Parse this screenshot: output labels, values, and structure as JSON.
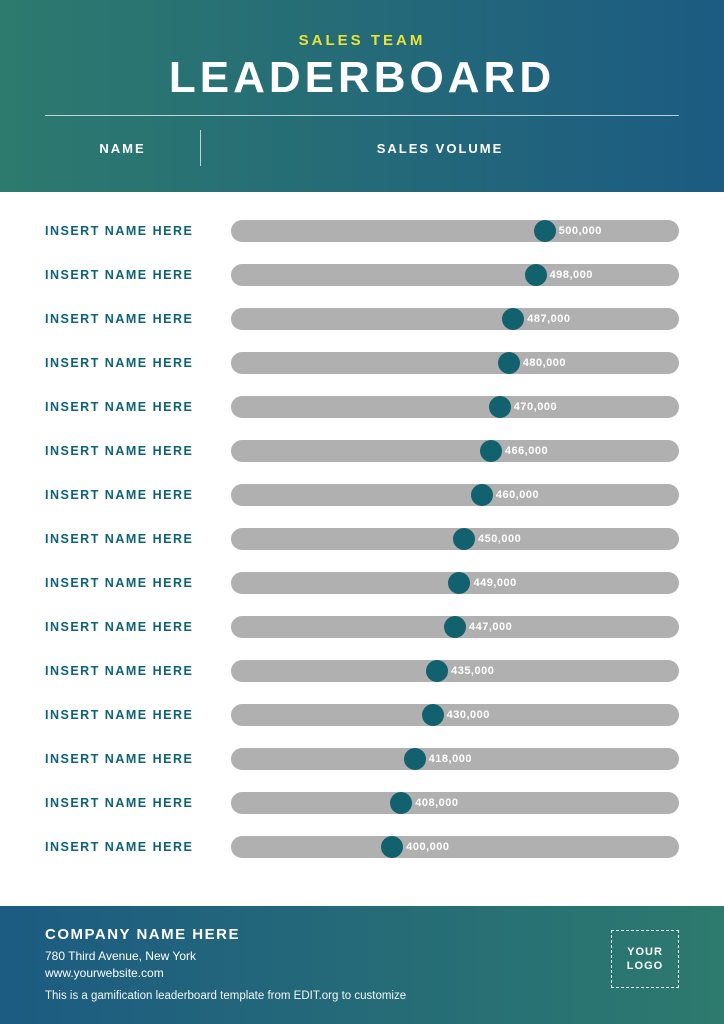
{
  "colors": {
    "header_gradient_start": "#2d7a6e",
    "header_gradient_end": "#1c5b82",
    "footer_gradient_start": "#1c5b82",
    "footer_gradient_end": "#2d7a6e",
    "subtitle_color": "#e8e337",
    "title_color": "#ffffff",
    "name_color": "#0d6278",
    "bar_track": "#b0b0b0",
    "marker_color": "#12616f",
    "value_text": "#ffffff",
    "body_bg": "#ffffff"
  },
  "header": {
    "subtitle": "SALES TEAM",
    "title": "LEADERBOARD",
    "col_name": "NAME",
    "col_volume": "SALES VOLUME"
  },
  "chart": {
    "bar_min_pct": 0,
    "bar_max_pct": 100,
    "rows": [
      {
        "name": "INSERT NAME HERE",
        "value_label": "500,000",
        "marker_pct": 70
      },
      {
        "name": "INSERT NAME HERE",
        "value_label": "498,000",
        "marker_pct": 68
      },
      {
        "name": "INSERT NAME HERE",
        "value_label": "487,000",
        "marker_pct": 63
      },
      {
        "name": "INSERT NAME HERE",
        "value_label": "480,000",
        "marker_pct": 62
      },
      {
        "name": "INSERT NAME HERE",
        "value_label": "470,000",
        "marker_pct": 60
      },
      {
        "name": "INSERT NAME HERE",
        "value_label": "466,000",
        "marker_pct": 58
      },
      {
        "name": "INSERT NAME HERE",
        "value_label": "460,000",
        "marker_pct": 56
      },
      {
        "name": "INSERT NAME HERE",
        "value_label": "450,000",
        "marker_pct": 52
      },
      {
        "name": "INSERT NAME HERE",
        "value_label": "449,000",
        "marker_pct": 51
      },
      {
        "name": "INSERT NAME HERE",
        "value_label": "447,000",
        "marker_pct": 50
      },
      {
        "name": "INSERT NAME HERE",
        "value_label": "435,000",
        "marker_pct": 46
      },
      {
        "name": "INSERT NAME HERE",
        "value_label": "430,000",
        "marker_pct": 45
      },
      {
        "name": "INSERT NAME HERE",
        "value_label": "418,000",
        "marker_pct": 41
      },
      {
        "name": "INSERT NAME HERE",
        "value_label": "408,000",
        "marker_pct": 38
      },
      {
        "name": "INSERT NAME HERE",
        "value_label": "400,000",
        "marker_pct": 36
      }
    ]
  },
  "footer": {
    "company": "COMPANY NAME HERE",
    "address": "780 Third Avenue, New York",
    "website": "www.yourwebsite.com",
    "disclaimer": "This is a gamification leaderboard template from EDIT.org to customize",
    "logo_text": "YOUR LOGO"
  }
}
